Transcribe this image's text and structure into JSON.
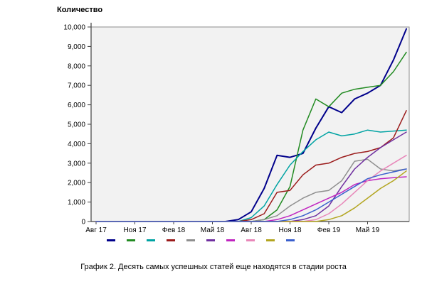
{
  "chart": {
    "title": "Количество"
  },
  "caption": {
    "text": "График 2. Десять самых успешных статей еще находятся в стадии роста"
  },
  "chart_data": {
    "type": "line",
    "title": "Количество",
    "xlabel": "",
    "ylabel": "Количество",
    "ylim": [
      0,
      10000
    ],
    "grid": false,
    "legend_position": "below-axis-cropped",
    "plot_background": "#f2f2f2",
    "axis_color": "#404040",
    "y_tick_labels": [
      "0",
      "1,000",
      "2,000",
      "3,000",
      "4,000",
      "5,000",
      "6,000",
      "7,000",
      "8,000",
      "9,000",
      "10,000"
    ],
    "x_labels_visible": [
      "Авг 17",
      "Ноя 17",
      "Фев 18",
      "Май 18",
      "Авг 18",
      "Ноя 18",
      "Фев 19",
      "Май 19"
    ],
    "x_tick_indices": [
      0,
      3,
      6,
      9,
      12,
      15,
      18,
      21
    ],
    "x": [
      "Авг 17",
      "Сен 17",
      "Окт 17",
      "Ноя 17",
      "Дек 17",
      "Янв 18",
      "Фев 18",
      "Мар 18",
      "Апр 18",
      "Май 18",
      "Июн 18",
      "Июл 18",
      "Авг 18",
      "Сен 18",
      "Окт 18",
      "Ноя 18",
      "Дек 18",
      "Янв 19",
      "Фев 19",
      "Мар 19",
      "Апр 19",
      "Май 19",
      "Июн 19",
      "Июл 19",
      "Авг 19"
    ],
    "series": [
      {
        "name": "series-navy",
        "color": "#00008B",
        "values": [
          0,
          0,
          0,
          0,
          0,
          0,
          0,
          0,
          0,
          0,
          0,
          100,
          500,
          1700,
          3400,
          3300,
          3500,
          4800,
          5900,
          5600,
          6300,
          6600,
          7000,
          8300,
          9900
        ]
      },
      {
        "name": "series-green",
        "color": "#228B22",
        "values": [
          0,
          0,
          0,
          0,
          0,
          0,
          0,
          0,
          0,
          0,
          0,
          0,
          0,
          100,
          600,
          1800,
          4700,
          6300,
          5900,
          6600,
          6800,
          6900,
          7000,
          7700,
          8700
        ]
      },
      {
        "name": "series-teal",
        "color": "#00A3A3",
        "values": [
          0,
          0,
          0,
          0,
          0,
          0,
          0,
          0,
          0,
          0,
          0,
          0,
          200,
          800,
          1900,
          2900,
          3600,
          4200,
          4600,
          4400,
          4500,
          4700,
          4600,
          4650,
          4700
        ]
      },
      {
        "name": "series-darkred",
        "color": "#9B1B1B",
        "values": [
          0,
          0,
          0,
          0,
          0,
          0,
          0,
          0,
          0,
          0,
          0,
          0,
          100,
          400,
          1500,
          1600,
          2400,
          2900,
          3000,
          3300,
          3500,
          3600,
          3800,
          4300,
          5700
        ]
      },
      {
        "name": "series-gray",
        "color": "#8F8F8F",
        "values": [
          0,
          0,
          0,
          0,
          0,
          0,
          0,
          0,
          0,
          0,
          0,
          0,
          0,
          100,
          300,
          800,
          1200,
          1500,
          1600,
          2100,
          3100,
          3200,
          2700,
          2600,
          2700
        ]
      },
      {
        "name": "series-purple",
        "color": "#7030A0",
        "values": [
          0,
          0,
          0,
          0,
          0,
          0,
          0,
          0,
          0,
          0,
          0,
          0,
          0,
          0,
          0,
          0,
          100,
          300,
          800,
          1800,
          2700,
          3300,
          3800,
          4200,
          4600
        ]
      },
      {
        "name": "series-magenta",
        "color": "#C024C0",
        "values": [
          0,
          0,
          0,
          0,
          0,
          0,
          0,
          0,
          0,
          0,
          0,
          0,
          0,
          0,
          100,
          300,
          600,
          900,
          1200,
          1500,
          1900,
          2100,
          2200,
          2250,
          2300
        ]
      },
      {
        "name": "series-pink",
        "color": "#E887B9",
        "values": [
          0,
          0,
          0,
          0,
          0,
          0,
          0,
          0,
          0,
          0,
          0,
          0,
          0,
          0,
          0,
          0,
          0,
          100,
          400,
          900,
          1500,
          2100,
          2600,
          3000,
          3400
        ]
      },
      {
        "name": "series-olive",
        "color": "#B3A520",
        "values": [
          0,
          0,
          0,
          0,
          0,
          0,
          0,
          0,
          0,
          0,
          0,
          0,
          0,
          0,
          0,
          0,
          0,
          0,
          100,
          300,
          700,
          1200,
          1700,
          2100,
          2600
        ]
      },
      {
        "name": "series-blue",
        "color": "#3A5FCD",
        "values": [
          0,
          0,
          0,
          0,
          0,
          0,
          0,
          0,
          0,
          0,
          0,
          0,
          0,
          0,
          0,
          100,
          300,
          600,
          1000,
          1400,
          1800,
          2200,
          2400,
          2550,
          2700
        ]
      }
    ]
  }
}
